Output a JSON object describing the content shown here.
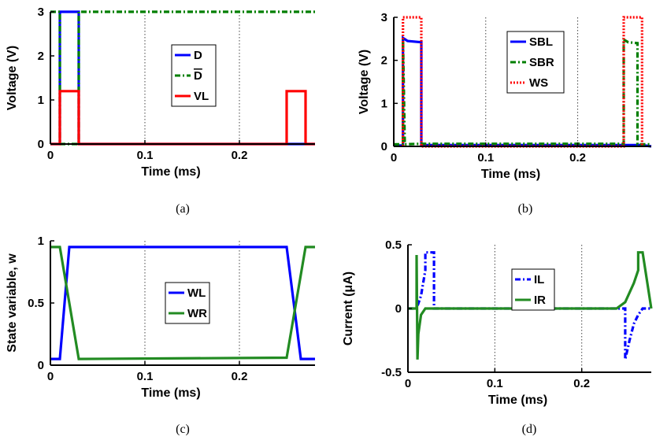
{
  "chart_data": [
    {
      "type": "line",
      "caption": "(a)",
      "xlabel": "Time (ms)",
      "ylabel": "Voltage (V)",
      "xlim": [
        0,
        0.28
      ],
      "ylim": [
        0,
        3
      ],
      "xticks": [
        0,
        0.1,
        0.2
      ],
      "xtick_labels": [
        "0",
        "0.1",
        "0.2"
      ],
      "yticks": [
        0,
        1,
        2,
        3
      ],
      "ytick_labels": [
        "0",
        "1",
        "2",
        "3"
      ],
      "grid": "vertical-dotted",
      "legend_position": "center-right",
      "series": [
        {
          "name": "D",
          "color": "#0000ff",
          "style": "solid",
          "x": [
            0,
            0.01,
            0.01,
            0.03,
            0.03,
            0.28
          ],
          "y": [
            0,
            0,
            3,
            3,
            0,
            0
          ]
        },
        {
          "name": "D",
          "overline": true,
          "color": "#007f00",
          "style": "dashdot",
          "x": [
            0,
            0.01,
            0.01,
            0.03,
            0.03,
            0.28
          ],
          "y": [
            3,
            3,
            0,
            0,
            3,
            3
          ]
        },
        {
          "name": "VL",
          "color": "#ff0000",
          "style": "solid",
          "x": [
            0,
            0.01,
            0.01,
            0.03,
            0.03,
            0.25,
            0.25,
            0.27,
            0.27,
            0.28
          ],
          "y": [
            0,
            0,
            1.2,
            1.2,
            0,
            0,
            1.2,
            1.2,
            0,
            0
          ]
        }
      ]
    },
    {
      "type": "line",
      "caption": "(b)",
      "xlabel": "Time (ms)",
      "ylabel": "Voltage (V)",
      "xlim": [
        0,
        0.28
      ],
      "ylim": [
        0,
        3
      ],
      "xticks": [
        0,
        0.1,
        0.2
      ],
      "xtick_labels": [
        "0",
        "0.1",
        "0.2"
      ],
      "yticks": [
        0,
        1,
        2,
        3
      ],
      "ytick_labels": [
        "0",
        "1",
        "2",
        "3"
      ],
      "grid": "vertical-dotted",
      "legend_position": "top-right",
      "series": [
        {
          "name": "SBL",
          "color": "#0000ff",
          "style": "solid",
          "x": [
            0,
            0.01,
            0.01,
            0.015,
            0.03,
            0.03,
            0.27,
            0.28
          ],
          "y": [
            0.02,
            0.02,
            2.52,
            2.45,
            2.42,
            0.03,
            0.03,
            0.0
          ]
        },
        {
          "name": "SBR",
          "color": "#007f00",
          "style": "dashdot",
          "x": [
            0,
            0.01,
            0.01,
            0.012,
            0.03,
            0.25,
            0.25,
            0.255,
            0.265,
            0.265,
            0.28
          ],
          "y": [
            0.05,
            0.05,
            2.5,
            0.05,
            0.06,
            0.06,
            2.48,
            2.42,
            2.4,
            0.05,
            0.05
          ]
        },
        {
          "name": "WS",
          "color": "#ff0000",
          "style": "dotted",
          "x": [
            0.01,
            0.01,
            0.03,
            0.03,
            0.25,
            0.25,
            0.27,
            0.27
          ],
          "y": [
            0,
            3,
            3,
            0,
            0,
            3,
            3,
            0
          ]
        }
      ]
    },
    {
      "type": "line",
      "caption": "(c)",
      "xlabel": "Time (ms)",
      "ylabel": "State variable, w",
      "xlim": [
        0,
        0.28
      ],
      "ylim": [
        0,
        1
      ],
      "xticks": [
        0,
        0.1,
        0.2
      ],
      "xtick_labels": [
        "0",
        "0.1",
        "0.2"
      ],
      "yticks": [
        0,
        0.5,
        1
      ],
      "ytick_labels": [
        "0",
        "0.5",
        "1"
      ],
      "grid": "vertical-dotted",
      "legend_position": "center-right",
      "series": [
        {
          "name": "WL",
          "color": "#0000ff",
          "style": "solid",
          "x": [
            0,
            0.01,
            0.02,
            0.25,
            0.265,
            0.28
          ],
          "y": [
            0.05,
            0.05,
            0.95,
            0.95,
            0.05,
            0.05
          ]
        },
        {
          "name": "WR",
          "color": "#228b22",
          "style": "solid",
          "x": [
            0,
            0.01,
            0.03,
            0.25,
            0.27,
            0.28
          ],
          "y": [
            0.95,
            0.95,
            0.05,
            0.06,
            0.95,
            0.95
          ]
        }
      ]
    },
    {
      "type": "line",
      "caption": "(d)",
      "xlabel": "Time (ms)",
      "ylabel": "Current (μA)",
      "xlim": [
        0,
        0.28
      ],
      "ylim": [
        -0.5,
        0.5
      ],
      "xticks": [
        0,
        0.1,
        0.2
      ],
      "xtick_labels": [
        "0",
        "0.1",
        "0.2"
      ],
      "yticks": [
        -0.5,
        0,
        0.5
      ],
      "ytick_labels": [
        "-0.5",
        "0",
        "0.5"
      ],
      "grid": "vertical-dotted",
      "legend_position": "top-right",
      "series": [
        {
          "name": "IL",
          "color": "#0000ff",
          "style": "dashdot",
          "x": [
            0,
            0.01,
            0.015,
            0.02,
            0.02,
            0.03,
            0.03,
            0.25,
            0.25,
            0.255,
            0.26,
            0.265,
            0.27,
            0.28
          ],
          "y": [
            0,
            0,
            0.1,
            0.3,
            0.44,
            0.44,
            0,
            0,
            -0.4,
            -0.25,
            -0.12,
            -0.05,
            0,
            0
          ]
        },
        {
          "name": "IR",
          "color": "#228b22",
          "style": "solid",
          "x": [
            0,
            0.01,
            0.01,
            0.011,
            0.012,
            0.015,
            0.02,
            0.03,
            0.24,
            0.25,
            0.26,
            0.265,
            0.265,
            0.27,
            0.28
          ],
          "y": [
            0,
            0,
            0.42,
            -0.4,
            -0.2,
            -0.05,
            0,
            0,
            0,
            0.05,
            0.2,
            0.3,
            0.44,
            0.44,
            0
          ]
        }
      ]
    }
  ]
}
